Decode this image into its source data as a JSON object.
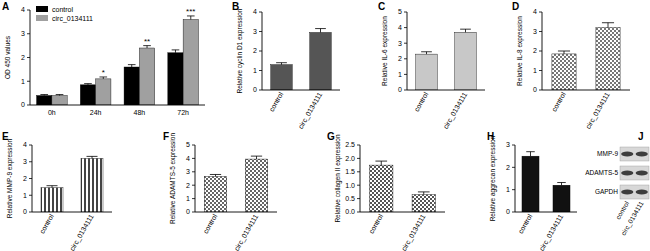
{
  "chart_data": [
    {
      "type": "bar",
      "title": "A",
      "y_label": "OD 450 values",
      "categories": [
        "0h",
        "24h",
        "48h",
        "72h"
      ],
      "series": [
        {
          "name": "control",
          "color": "#000000",
          "values": [
            0.4,
            0.85,
            1.6,
            2.2
          ],
          "errors": [
            0.04,
            0.05,
            0.1,
            0.12
          ]
        },
        {
          "name": "circ_0134111",
          "color": "#a0a0a0",
          "values": [
            0.4,
            1.1,
            2.4,
            3.6
          ],
          "errors": [
            0.04,
            0.08,
            0.1,
            0.15
          ]
        }
      ],
      "annotations": [
        {
          "text": "*",
          "category": "24h"
        },
        {
          "text": "**",
          "category": "48h"
        },
        {
          "text": "***",
          "category": "72h"
        }
      ],
      "ylim": [
        0,
        4
      ],
      "yticks": [
        0,
        1,
        2,
        3,
        4
      ],
      "legend": "upper left"
    },
    {
      "type": "bar",
      "title": "B",
      "y_label": "Relative cyclin D1 expression",
      "categories": [
        "control",
        "circ_0134111"
      ],
      "values": [
        1.3,
        2.95
      ],
      "errors": [
        0.1,
        0.2
      ],
      "color": "#555555",
      "ylim": [
        0,
        4
      ],
      "yticks": [
        0,
        1,
        2,
        3,
        4
      ]
    },
    {
      "type": "bar",
      "title": "C",
      "y_label": "Relative IL-6 expression",
      "categories": [
        "control",
        "circ_0134111"
      ],
      "values": [
        2.3,
        3.7
      ],
      "errors": [
        0.15,
        0.2
      ],
      "color": "#c8c8c8",
      "ylim": [
        0,
        5
      ],
      "yticks": [
        0,
        1,
        2,
        3,
        4,
        5
      ]
    },
    {
      "type": "bar",
      "title": "D",
      "y_label": "Relative IL-8 expression",
      "categories": [
        "control",
        "circ_0134111"
      ],
      "values": [
        1.85,
        3.2
      ],
      "errors": [
        0.15,
        0.25
      ],
      "color": "#777777",
      "ylim": [
        0,
        4
      ],
      "yticks": [
        0,
        1,
        2,
        3,
        4
      ]
    },
    {
      "type": "bar",
      "title": "E",
      "y_label": "Relative MMP-9 expression",
      "categories": [
        "control",
        "circ_0134111"
      ],
      "values": [
        1.45,
        3.2
      ],
      "errors": [
        0.12,
        0.12
      ],
      "color": "#444444",
      "ylim": [
        0,
        4
      ],
      "yticks": [
        0,
        1,
        2,
        3,
        4
      ]
    },
    {
      "type": "bar",
      "title": "F",
      "y_label": "Relative ADAMTS-5 expression",
      "categories": [
        "control",
        "circ_0134111"
      ],
      "values": [
        2.65,
        3.95
      ],
      "errors": [
        0.15,
        0.22
      ],
      "color": "#666666",
      "ylim": [
        0,
        5
      ],
      "yticks": [
        0,
        1,
        2,
        3,
        4,
        5
      ]
    },
    {
      "type": "bar",
      "title": "G",
      "y_label": "Relative collagen II expression",
      "categories": [
        "control",
        "circ_0134111"
      ],
      "values": [
        1.75,
        0.65
      ],
      "errors": [
        0.15,
        0.1
      ],
      "color": "#555555",
      "ylim": [
        0,
        2.5
      ],
      "yticks": [
        {
          "value": 0,
          "label": "0.0"
        },
        0.5,
        {
          "value": 1,
          "label": "1.0"
        },
        1.5,
        {
          "value": 2,
          "label": "2.0"
        },
        2.5
      ]
    },
    {
      "type": "bar",
      "title": "H",
      "y_label": "Relative aggrecan expression",
      "categories": [
        "control",
        "circ_0134111"
      ],
      "values": [
        2.5,
        1.2
      ],
      "errors": [
        0.2,
        0.12
      ],
      "color": "#111111",
      "ylim": [
        0,
        3
      ],
      "yticks": [
        0,
        1,
        2,
        3
      ]
    }
  ],
  "blot": {
    "title": "J",
    "rows": [
      "MMP-9",
      "ADAMTS-5",
      "GAPDH"
    ],
    "lanes": [
      "control",
      "circ_0134111"
    ]
  }
}
